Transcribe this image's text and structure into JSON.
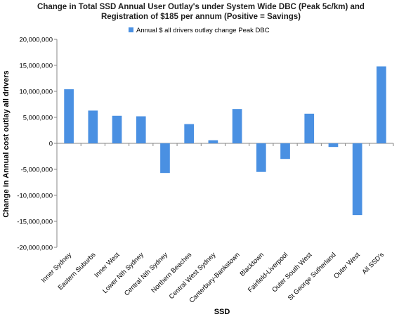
{
  "chart_data": {
    "type": "bar",
    "title_lines": [
      "Change in Total SSD Annual User Outlay's under System Wide DBC (Peak 5c/km) and",
      "Registration of $185 per annum (Positive = Savings)"
    ],
    "xlabel": "SSD",
    "ylabel": "Change in Annual  cost  outlay all drivers",
    "ylim": [
      -20000000,
      20000000
    ],
    "yticks": [
      20000000,
      15000000,
      10000000,
      5000000,
      0,
      -5000000,
      -10000000,
      -15000000,
      -20000000
    ],
    "ytick_labels": [
      "20,000,000",
      "15,000,000",
      "10,000,000",
      "5,000,000",
      "0",
      "-5,000,000",
      "-10,000,000",
      "-15,000,000",
      "-20,000,000"
    ],
    "grid": false,
    "legend_position": "top-center",
    "categories": [
      "Inner Sydney",
      "Eastern Suburbs",
      "Inner West",
      "Lower Nth Sydney",
      "Central Nth Sydney",
      "Northern Beaches",
      "Central West Sydney",
      "Canterbury-Bankstown",
      "Blacktown",
      "Fairfield-Liverpool",
      "Outer South West",
      "St George Sutherland",
      "Outer West",
      "All SSD's"
    ],
    "series": [
      {
        "name": "Annual $ all drivers outlay change Peak DBC",
        "color": "#4a90e2",
        "values": [
          10400000,
          6300000,
          5300000,
          5200000,
          -5700000,
          3700000,
          600000,
          6600000,
          -5500000,
          -3000000,
          5700000,
          -700000,
          -13800000,
          14800000
        ]
      }
    ]
  }
}
